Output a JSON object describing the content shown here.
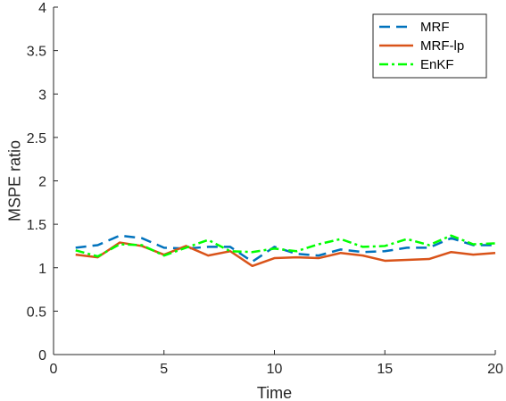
{
  "chart_data": {
    "type": "line",
    "xlabel": "Time",
    "ylabel": "MSPE ratio",
    "xlim": [
      0,
      20
    ],
    "ylim": [
      0,
      4
    ],
    "xticks": [
      0,
      5,
      10,
      15,
      20
    ],
    "yticks": [
      0,
      0.5,
      1,
      1.5,
      2,
      2.5,
      3,
      3.5,
      4
    ],
    "ytick_labels": [
      "0",
      "0.5",
      "1",
      "1.5",
      "2",
      "2.5",
      "3",
      "3.5",
      "4"
    ],
    "grid": false,
    "legend_position": "top-right",
    "x": [
      1,
      2,
      3,
      4,
      5,
      6,
      7,
      8,
      9,
      10,
      11,
      12,
      13,
      14,
      15,
      16,
      17,
      18,
      19,
      20
    ],
    "series": [
      {
        "name": "MRF",
        "color": "#0072BD",
        "style": "dashed",
        "values": [
          1.23,
          1.26,
          1.37,
          1.34,
          1.23,
          1.22,
          1.24,
          1.24,
          1.07,
          1.24,
          1.16,
          1.14,
          1.21,
          1.18,
          1.19,
          1.23,
          1.23,
          1.34,
          1.26,
          1.26
        ]
      },
      {
        "name": "MRF-lp",
        "color": "#D95319",
        "style": "solid",
        "values": [
          1.15,
          1.12,
          1.29,
          1.25,
          1.15,
          1.25,
          1.14,
          1.19,
          1.02,
          1.11,
          1.12,
          1.11,
          1.17,
          1.14,
          1.08,
          1.09,
          1.1,
          1.18,
          1.15,
          1.17
        ]
      },
      {
        "name": "EnKF",
        "color": "#00FF00",
        "style": "dashdot",
        "values": [
          1.2,
          1.13,
          1.27,
          1.26,
          1.14,
          1.23,
          1.32,
          1.19,
          1.18,
          1.22,
          1.19,
          1.27,
          1.33,
          1.24,
          1.25,
          1.33,
          1.26,
          1.37,
          1.27,
          1.28
        ]
      }
    ]
  }
}
